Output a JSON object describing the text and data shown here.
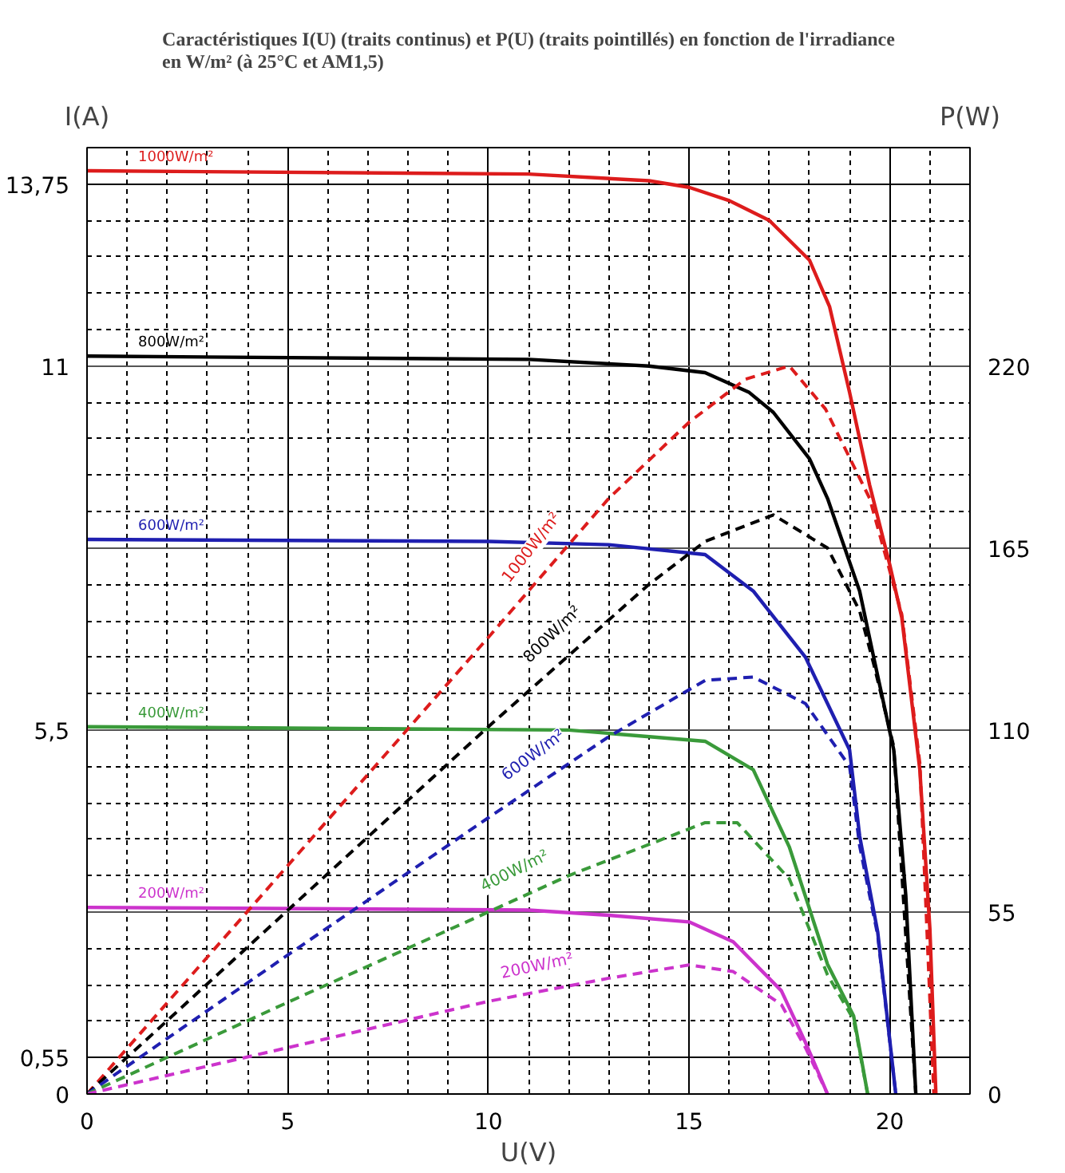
{
  "chart_data": {
    "type": "line",
    "title": "Caractéristiques I(U) (traits continus) et P(U) (traits pointillés) en fonction de l'irradiance\nen W/m² (à 25°C et AM1,5)",
    "xlabel": "U(V)",
    "ylabel": "I(A)",
    "y2label": "P(W)",
    "xlim": [
      0,
      22
    ],
    "ylim": [
      0,
      14.3
    ],
    "y2lim": [
      0,
      286
    ],
    "xticks": [
      0,
      {
        "value": 1,
        "label": null
      },
      {
        "value": 2,
        "label": null
      },
      {
        "value": 3,
        "label": null
      },
      {
        "value": 4,
        "label": null
      },
      5,
      {
        "value": 6,
        "label": null
      },
      {
        "value": 7,
        "label": null
      },
      {
        "value": 8,
        "label": null
      },
      {
        "value": 9,
        "label": null
      },
      10,
      {
        "value": 11,
        "label": null
      },
      {
        "value": 12,
        "label": null
      },
      {
        "value": 13,
        "label": null
      },
      {
        "value": 14,
        "label": null
      },
      15,
      {
        "value": 16,
        "label": null
      },
      {
        "value": 17,
        "label": null
      },
      {
        "value": 18,
        "label": null
      },
      {
        "value": 19,
        "label": null
      },
      20,
      {
        "value": 21,
        "label": null
      },
      {
        "value": 22,
        "label": null
      }
    ],
    "yticks": [
      0,
      {
        "value": 0.55,
        "label": "0,55"
      },
      {
        "value": 1.1,
        "label": null
      },
      {
        "value": 1.65,
        "label": null
      },
      {
        "value": 2.2,
        "label": null
      },
      {
        "value": 2.75,
        "label": null
      },
      {
        "value": 3.3,
        "label": null
      },
      {
        "value": 3.85,
        "label": null
      },
      {
        "value": 4.4,
        "label": null
      },
      {
        "value": 4.95,
        "label": null
      },
      {
        "value": 5.5,
        "label": "5,5"
      },
      {
        "value": 6.05,
        "label": null
      },
      {
        "value": 6.6,
        "label": null
      },
      {
        "value": 7.15,
        "label": null
      },
      {
        "value": 7.7,
        "label": null
      },
      {
        "value": 8.25,
        "label": null
      },
      {
        "value": 8.8,
        "label": null
      },
      {
        "value": 9.35,
        "label": null
      },
      {
        "value": 9.9,
        "label": null
      },
      {
        "value": 10.45,
        "label": null
      },
      11,
      {
        "value": 11.55,
        "label": null
      },
      {
        "value": 12.1,
        "label": null
      },
      {
        "value": 12.65,
        "label": null
      },
      {
        "value": 13.2,
        "label": null
      },
      {
        "value": 13.75,
        "label": "13,75"
      },
      {
        "value": 14.3,
        "label": null
      }
    ],
    "y2ticks": [
      0,
      55,
      110,
      165,
      220
    ],
    "grid": true,
    "legend": false,
    "marker": "none",
    "series": [
      {
        "name": "1000W/m²",
        "color": "#dd1c1c",
        "line_style": "solid",
        "x": [
          0,
          11,
          14,
          15,
          16,
          17,
          18,
          18.5,
          19,
          19.5,
          20,
          20.3,
          20.75,
          21,
          21.15
        ],
        "values": [
          13.95,
          13.9,
          13.8,
          13.7,
          13.5,
          13.2,
          12.6,
          11.9,
          10.6,
          9.2,
          8.0,
          7.2,
          4.9,
          2.5,
          0
        ]
      },
      {
        "name": "800W/m²",
        "color": "#000000",
        "line_style": "solid",
        "x": [
          0,
          11,
          14,
          15.4,
          16.5,
          17.1,
          18,
          18.45,
          19.25,
          19.6,
          20.1,
          20.4,
          20.65
        ],
        "values": [
          11.15,
          11.1,
          11.0,
          10.9,
          10.6,
          10.3,
          9.6,
          9.0,
          7.6,
          6.6,
          5.2,
          3.0,
          0
        ]
      },
      {
        "name": "600W/m²",
        "color": "#1f1fb0",
        "line_style": "solid",
        "x": [
          0,
          10,
          13,
          15.4,
          16.6,
          17.9,
          19,
          19.25,
          19.7,
          20.15
        ],
        "values": [
          8.38,
          8.35,
          8.3,
          8.15,
          7.6,
          6.6,
          5.2,
          3.9,
          2.45,
          0
        ]
      },
      {
        "name": "400W/m²",
        "color": "#3a9a3a",
        "line_style": "solid",
        "x": [
          0,
          12,
          15.4,
          16.6,
          17.5,
          18.45,
          19.1,
          19.45
        ],
        "values": [
          5.55,
          5.5,
          5.33,
          4.9,
          3.73,
          1.96,
          1.18,
          0
        ]
      },
      {
        "name": "200W/m²",
        "color": "#cc33cc",
        "line_style": "solid",
        "x": [
          0,
          11,
          13,
          15,
          16.1,
          17.3,
          17.9,
          18.45
        ],
        "values": [
          2.82,
          2.78,
          2.7,
          2.6,
          2.3,
          1.56,
          0.78,
          0
        ]
      },
      {
        "name": "1000W/m²",
        "color": "#dd1c1c",
        "line_style": "dashed",
        "axis": "y2",
        "x": [
          0,
          5,
          10,
          13,
          15,
          16.4,
          17.5,
          18.4,
          19.5,
          20.3,
          20.75,
          21.1
        ],
        "values": [
          0,
          69,
          138,
          180,
          203,
          216,
          220,
          207,
          180,
          145,
          100,
          0
        ]
      },
      {
        "name": "800W/m²",
        "color": "#000000",
        "line_style": "dashed",
        "axis": "y2",
        "x": [
          0,
          5,
          10,
          14,
          15.4,
          17.1,
          18.45,
          19.25,
          19.6,
          20.1,
          20.65
        ],
        "values": [
          0,
          55.5,
          111,
          154,
          167,
          175,
          165,
          146,
          130,
          105,
          0
        ]
      },
      {
        "name": "600W/m²",
        "color": "#1f1fb0",
        "line_style": "dashed",
        "axis": "y2",
        "x": [
          0,
          5,
          10,
          13,
          15.4,
          16.6,
          17.9,
          19,
          19.25,
          19.7,
          20.15
        ],
        "values": [
          0,
          42,
          83.5,
          108,
          125,
          126,
          118,
          99,
          75,
          48,
          0
        ]
      },
      {
        "name": "400W/m²",
        "color": "#3a9a3a",
        "line_style": "dashed",
        "axis": "y2",
        "x": [
          0,
          5,
          10,
          12,
          15.4,
          16.2,
          17.5,
          18.45,
          19.1,
          19.45
        ],
        "values": [
          0,
          27.7,
          55,
          66,
          82,
          82,
          65,
          36,
          22.5,
          0
        ]
      },
      {
        "name": "200W/m²",
        "color": "#cc33cc",
        "line_style": "dashed",
        "axis": "y2",
        "x": [
          0,
          5,
          10,
          13,
          15,
          16.1,
          17.3,
          17.9,
          18.45
        ],
        "values": [
          0,
          14,
          28,
          35,
          39,
          37,
          27,
          14,
          0
        ]
      }
    ]
  }
}
